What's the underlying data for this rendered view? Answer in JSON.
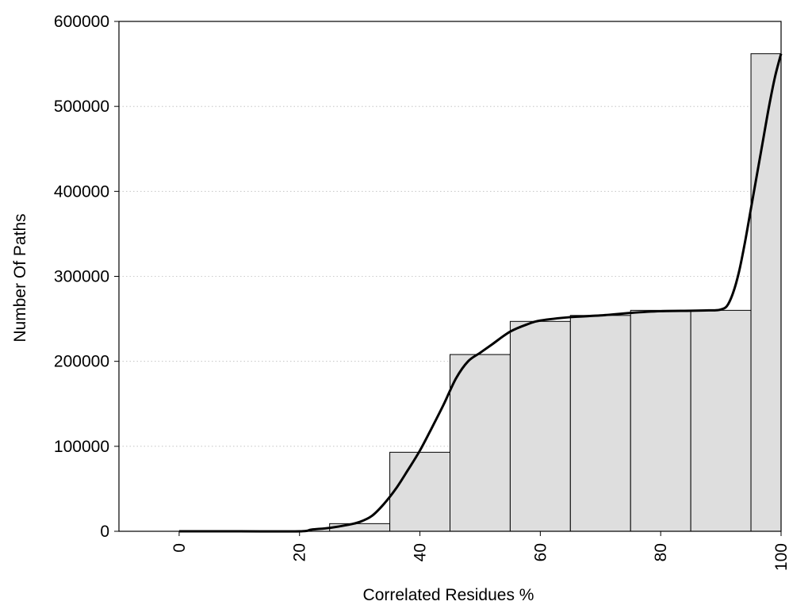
{
  "chart_data": {
    "type": "bar",
    "xlabel": "Correlated Residues %",
    "ylabel": "Number Of Paths",
    "xlim": [
      -10,
      100
    ],
    "ylim": [
      0,
      600000
    ],
    "bin_width": 10,
    "xticks": [
      0,
      20,
      40,
      60,
      80,
      100
    ],
    "yticks": [
      0,
      100000,
      200000,
      300000,
      400000,
      500000,
      600000
    ],
    "grid": "horizontal-dotted",
    "bars": [
      {
        "x": 0,
        "value": 0
      },
      {
        "x": 10,
        "value": 0
      },
      {
        "x": 20,
        "value": 0
      },
      {
        "x": 30,
        "value": 9000
      },
      {
        "x": 40,
        "value": 93000
      },
      {
        "x": 50,
        "value": 208000
      },
      {
        "x": 60,
        "value": 247000
      },
      {
        "x": 70,
        "value": 254000
      },
      {
        "x": 80,
        "value": 260000
      },
      {
        "x": 90,
        "value": 260000
      },
      {
        "x": 100,
        "value": 562000
      }
    ],
    "curve": {
      "x": [
        0,
        10,
        20,
        22,
        25,
        28,
        30,
        32,
        34,
        36,
        38,
        40,
        42,
        44,
        46,
        48,
        50,
        52,
        55,
        58,
        60,
        65,
        70,
        75,
        80,
        85,
        88,
        89,
        90,
        91,
        92,
        93,
        94,
        95,
        96,
        97,
        98,
        99,
        100
      ],
      "y": [
        0,
        0,
        0,
        2000,
        4000,
        7500,
        11000,
        18000,
        32000,
        50000,
        72000,
        95000,
        122000,
        150000,
        180000,
        200000,
        210000,
        220000,
        235000,
        244000,
        248000,
        252000,
        254000,
        257000,
        259000,
        259500,
        260000,
        260000,
        261000,
        265000,
        280000,
        305000,
        340000,
        380000,
        420000,
        460000,
        500000,
        535000,
        562000
      ]
    }
  }
}
